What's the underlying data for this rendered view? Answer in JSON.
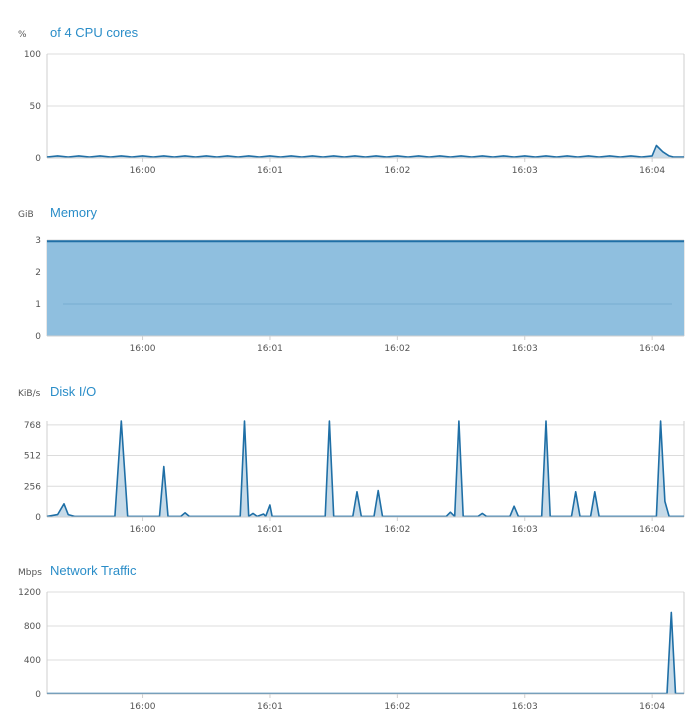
{
  "colors": {
    "series": "#1f6fa6",
    "memory_fill": "#8fbfdf",
    "grid": "#dcdcdc",
    "axis": "#cfcfcf",
    "title": "#2a8dc8"
  },
  "chart_data": [
    {
      "type": "line",
      "title": "of 4 CPU cores",
      "unit_label": "%",
      "ylim": [
        0,
        100
      ],
      "yticks": [
        0,
        50,
        100
      ],
      "xlim": [
        "15:59:15",
        "16:04:15"
      ],
      "xticks": [
        "16:00",
        "16:01",
        "16:02",
        "16:03",
        "16:04"
      ],
      "grid": true,
      "x": [
        "15:59:15",
        "15:59:20",
        "15:59:25",
        "15:59:30",
        "15:59:35",
        "15:59:40",
        "15:59:45",
        "15:59:50",
        "15:59:55",
        "16:00:00",
        "16:00:05",
        "16:00:10",
        "16:00:15",
        "16:00:20",
        "16:00:25",
        "16:00:30",
        "16:00:35",
        "16:00:40",
        "16:00:45",
        "16:00:50",
        "16:00:55",
        "16:01:00",
        "16:01:05",
        "16:01:10",
        "16:01:15",
        "16:01:20",
        "16:01:25",
        "16:01:30",
        "16:01:35",
        "16:01:40",
        "16:01:45",
        "16:01:50",
        "16:01:55",
        "16:02:00",
        "16:02:05",
        "16:02:10",
        "16:02:15",
        "16:02:20",
        "16:02:25",
        "16:02:30",
        "16:02:35",
        "16:02:40",
        "16:02:45",
        "16:02:50",
        "16:02:55",
        "16:03:00",
        "16:03:05",
        "16:03:10",
        "16:03:15",
        "16:03:20",
        "16:03:25",
        "16:03:30",
        "16:03:35",
        "16:03:40",
        "16:03:45",
        "16:03:50",
        "16:03:55",
        "16:04:00",
        "16:04:02",
        "16:04:05",
        "16:04:08",
        "16:04:10",
        "16:04:15"
      ],
      "values": [
        1,
        2,
        1,
        2,
        1,
        2,
        1,
        2,
        1,
        2,
        1,
        2,
        1,
        2,
        1,
        2,
        1,
        2,
        1,
        2,
        1,
        2,
        1,
        2,
        1,
        2,
        1,
        2,
        1,
        2,
        1,
        2,
        1,
        2,
        1,
        2,
        1,
        2,
        1,
        2,
        1,
        2,
        1,
        2,
        1,
        2,
        1,
        2,
        1,
        2,
        1,
        2,
        1,
        2,
        1,
        2,
        1,
        2,
        12,
        6,
        2,
        1,
        1
      ]
    },
    {
      "type": "area",
      "title": "Memory",
      "unit_label": "GiB",
      "ylim": [
        0,
        3
      ],
      "yticks": [
        0,
        1,
        2,
        3
      ],
      "xlim": [
        "15:59:15",
        "16:04:15"
      ],
      "xticks": [
        "16:00",
        "16:01",
        "16:02",
        "16:03",
        "16:04"
      ],
      "grid": true,
      "x": [
        "15:59:15",
        "16:04:15"
      ],
      "values": [
        2.96,
        2.96
      ]
    },
    {
      "type": "line",
      "title": "Disk I/O",
      "unit_label": "KiB/s",
      "ylim": [
        0,
        800
      ],
      "yticks": [
        0,
        256,
        512,
        768
      ],
      "xlim": [
        "15:59:15",
        "16:04:15"
      ],
      "xticks": [
        "16:00",
        "16:01",
        "16:02",
        "16:03",
        "16:04"
      ],
      "grid": true,
      "x": [
        "15:59:15",
        "15:59:20",
        "15:59:23",
        "15:59:25",
        "15:59:28",
        "15:59:47",
        "15:59:50",
        "15:59:53",
        "16:00:08",
        "16:00:10",
        "16:00:12",
        "16:00:18",
        "16:00:20",
        "16:00:22",
        "16:00:46",
        "16:00:48",
        "16:00:50",
        "16:00:52",
        "16:00:54",
        "16:00:57",
        "16:00:58",
        "16:01:00",
        "16:01:01",
        "16:01:03",
        "16:01:26",
        "16:01:28",
        "16:01:30",
        "16:01:39",
        "16:01:41",
        "16:01:43",
        "16:01:49",
        "16:01:51",
        "16:01:53",
        "16:02:23",
        "16:02:25",
        "16:02:27",
        "16:02:29",
        "16:02:31",
        "16:02:38",
        "16:02:40",
        "16:02:42",
        "16:02:53",
        "16:02:55",
        "16:02:57",
        "16:03:08",
        "16:03:10",
        "16:03:12",
        "16:03:22",
        "16:03:24",
        "16:03:26",
        "16:03:31",
        "16:03:33",
        "16:03:35",
        "16:04:02",
        "16:04:04",
        "16:04:06",
        "16:04:08",
        "16:04:15"
      ],
      "values": [
        5,
        20,
        110,
        20,
        5,
        5,
        800,
        5,
        5,
        420,
        5,
        5,
        35,
        5,
        5,
        800,
        5,
        30,
        5,
        25,
        5,
        100,
        5,
        5,
        5,
        800,
        5,
        5,
        210,
        5,
        5,
        220,
        5,
        5,
        40,
        5,
        800,
        5,
        5,
        30,
        5,
        5,
        90,
        5,
        5,
        800,
        5,
        5,
        210,
        5,
        5,
        210,
        5,
        5,
        800,
        130,
        5,
        5
      ]
    },
    {
      "type": "line",
      "title": "Network Traffic",
      "unit_label": "Mbps",
      "ylim": [
        0,
        1200
      ],
      "yticks": [
        0,
        400,
        800,
        1200
      ],
      "xlim": [
        "15:59:15",
        "16:04:15"
      ],
      "xticks": [
        "16:00",
        "16:01",
        "16:02",
        "16:03",
        "16:04"
      ],
      "grid": true,
      "x": [
        "15:59:15",
        "16:04:05",
        "16:04:07",
        "16:04:09",
        "16:04:11",
        "16:04:15"
      ],
      "values": [
        5,
        5,
        5,
        960,
        5,
        5
      ]
    }
  ]
}
